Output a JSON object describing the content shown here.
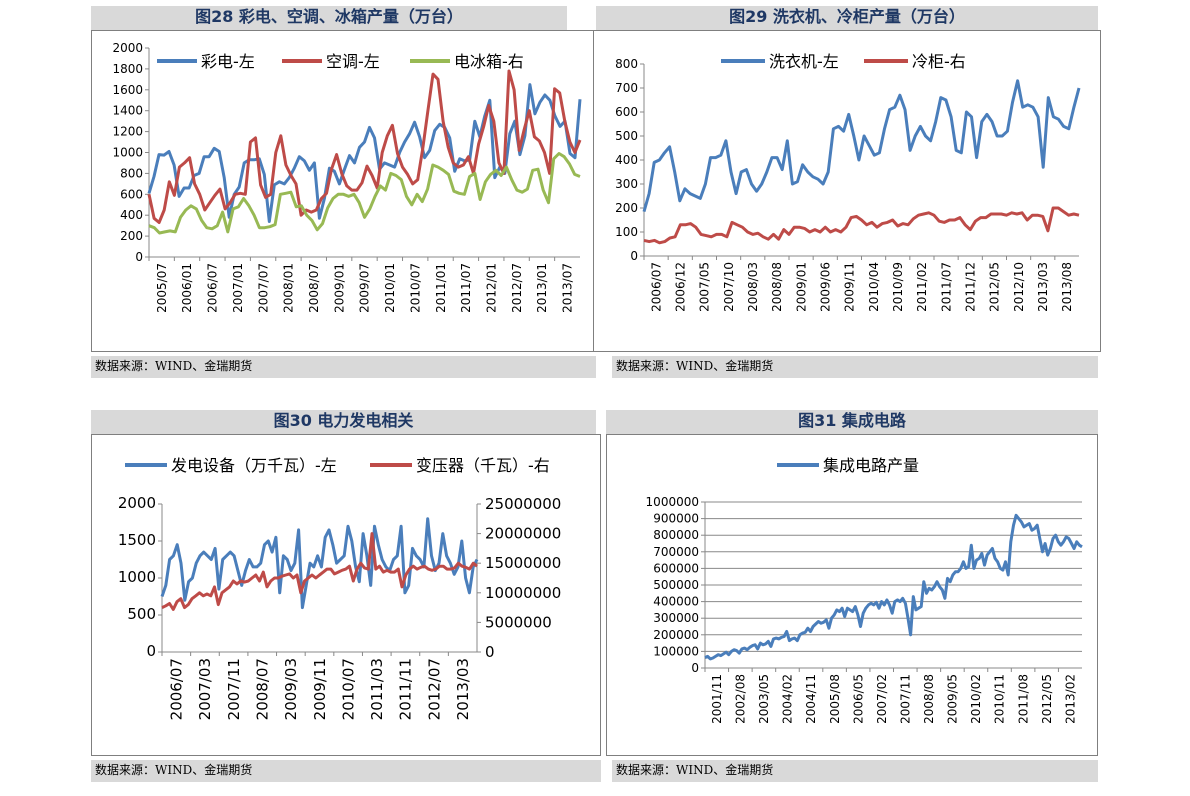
{
  "source_note": "数据来源：WIND、金瑞期货",
  "colors": {
    "blue": "#4a7ebb",
    "red": "#be4b48",
    "green": "#98b954",
    "title": "#1f3864",
    "band": "#d9d9d9"
  },
  "chart_data": [
    {
      "id": "fig28",
      "type": "line",
      "title": "图28  彩电、空调、冰箱产量（万台）",
      "x_ticks": [
        "2005/07",
        "2006/01",
        "2006/07",
        "2007/01",
        "2007/07",
        "2008/01",
        "2008/07",
        "2009/01",
        "2009/07",
        "2010/01",
        "2010/07",
        "2011/01",
        "2011/07",
        "2012/01",
        "2012/07",
        "2013/01",
        "2013/07"
      ],
      "x_range": [
        0,
        97
      ],
      "ylim": [
        0,
        2000
      ],
      "y_ticks": [
        0,
        200,
        400,
        600,
        800,
        1000,
        1200,
        1400,
        1600,
        1800,
        2000
      ],
      "legend_position": "top",
      "series": [
        {
          "name": "彩电-左",
          "color": "#4a7ebb",
          "values": [
            610,
            770,
            980,
            975,
            1010,
            880,
            580,
            660,
            660,
            780,
            800,
            960,
            960,
            1040,
            1010,
            760,
            380,
            600,
            670,
            900,
            930,
            930,
            940,
            790,
            340,
            690,
            720,
            700,
            760,
            850,
            960,
            920,
            830,
            900,
            370,
            560,
            850,
            820,
            700,
            840,
            970,
            900,
            1050,
            1100,
            1240,
            1140,
            840,
            900,
            880,
            860,
            1000,
            1100,
            1180,
            1290,
            1150,
            950,
            1020,
            1210,
            1270,
            1240,
            1140,
            820,
            940,
            920,
            930,
            1300,
            1150,
            1350,
            1500,
            760,
            860,
            800,
            1180,
            1300,
            980,
            1160,
            1650,
            1370,
            1480,
            1550,
            1500,
            1350,
            1250,
            1300,
            990,
            950,
            1510
          ]
        },
        {
          "name": "空调-左",
          "color": "#be4b48",
          "values": [
            600,
            370,
            330,
            450,
            720,
            590,
            860,
            900,
            950,
            700,
            600,
            450,
            520,
            590,
            650,
            460,
            520,
            600,
            610,
            600,
            1100,
            1140,
            690,
            570,
            600,
            1000,
            1160,
            880,
            780,
            700,
            400,
            450,
            430,
            450,
            560,
            610,
            840,
            980,
            800,
            680,
            640,
            640,
            710,
            870,
            780,
            660,
            1000,
            1160,
            1260,
            990,
            860,
            790,
            700,
            740,
            1040,
            1400,
            1750,
            1700,
            1300,
            1050,
            900,
            860,
            880,
            960,
            800,
            1080,
            1250,
            1450,
            1300,
            900,
            800,
            1780,
            1600,
            1020,
            1220,
            1400,
            1150,
            1110,
            1000,
            800,
            1610,
            1570,
            1300,
            1100,
            1000,
            1120
          ]
        },
        {
          "name": "电冰箱-右",
          "color": "#98b954",
          "values": [
            300,
            280,
            230,
            240,
            250,
            240,
            380,
            450,
            490,
            460,
            350,
            280,
            270,
            300,
            430,
            240,
            460,
            480,
            560,
            490,
            400,
            280,
            280,
            290,
            310,
            600,
            610,
            620,
            480,
            490,
            400,
            350,
            260,
            320,
            470,
            560,
            600,
            600,
            580,
            600,
            520,
            380,
            460,
            580,
            680,
            640,
            800,
            780,
            740,
            580,
            500,
            600,
            530,
            650,
            880,
            860,
            830,
            790,
            630,
            610,
            600,
            770,
            800,
            550,
            720,
            790,
            830,
            780,
            860,
            740,
            640,
            620,
            650,
            830,
            840,
            640,
            520,
            940,
            990,
            960,
            890,
            790,
            770
          ]
        }
      ]
    },
    {
      "id": "fig29",
      "type": "line",
      "title": "图29  洗衣机、冷柜产量（万台）",
      "x_ticks": [
        "2006/07",
        "2006/12",
        "2007/05",
        "2007/10",
        "2008/03",
        "2008/08",
        "2009/01",
        "2009/06",
        "2009/11",
        "2010/04",
        "2010/09",
        "2011/02",
        "2011/07",
        "2011/12",
        "2012/05",
        "2012/10",
        "2013/03",
        "2013/08"
      ],
      "x_range": [
        0,
        87
      ],
      "ylim": [
        0,
        800
      ],
      "y_ticks": [
        0,
        100,
        200,
        300,
        400,
        500,
        600,
        700,
        800
      ],
      "legend_position": "top",
      "series": [
        {
          "name": "洗衣机-左",
          "color": "#4a7ebb",
          "values": [
            185,
            260,
            390,
            400,
            430,
            455,
            350,
            230,
            280,
            260,
            250,
            240,
            300,
            410,
            410,
            420,
            480,
            350,
            260,
            350,
            360,
            300,
            270,
            300,
            350,
            410,
            410,
            360,
            480,
            300,
            310,
            380,
            350,
            330,
            320,
            300,
            350,
            530,
            540,
            520,
            590,
            500,
            400,
            500,
            460,
            420,
            430,
            530,
            610,
            620,
            670,
            610,
            440,
            500,
            540,
            500,
            480,
            560,
            660,
            650,
            580,
            440,
            430,
            600,
            580,
            410,
            560,
            590,
            560,
            500,
            500,
            520,
            640,
            730,
            620,
            630,
            620,
            580,
            370,
            660,
            580,
            570,
            540,
            530,
            620,
            700
          ]
        },
        {
          "name": "冷柜-右",
          "color": "#be4b48",
          "values": [
            65,
            60,
            65,
            55,
            60,
            75,
            80,
            130,
            130,
            135,
            120,
            90,
            85,
            80,
            90,
            90,
            80,
            140,
            130,
            120,
            100,
            90,
            95,
            80,
            70,
            90,
            70,
            110,
            90,
            120,
            120,
            115,
            100,
            110,
            100,
            120,
            100,
            110,
            100,
            120,
            160,
            165,
            150,
            130,
            140,
            120,
            135,
            140,
            150,
            125,
            135,
            130,
            155,
            170,
            175,
            180,
            170,
            145,
            140,
            150,
            150,
            160,
            130,
            110,
            145,
            160,
            160,
            175,
            175,
            175,
            170,
            180,
            175,
            180,
            150,
            170,
            170,
            165,
            105,
            200,
            200,
            185,
            170,
            175,
            170
          ]
        }
      ]
    },
    {
      "id": "fig30",
      "type": "line",
      "title": "图30  电力发电相关",
      "x_ticks": [
        "2006/07",
        "2007/03",
        "2007/11",
        "2008/07",
        "2009/03",
        "2009/11",
        "2010/07",
        "2011/03",
        "2011/11",
        "2012/07",
        "2013/03"
      ],
      "x_range": [
        0,
        84
      ],
      "ylim_left": [
        0,
        2000
      ],
      "y_ticks_left": [
        0,
        500,
        1000,
        1500,
        2000
      ],
      "ylim_right": [
        0,
        25000000
      ],
      "y_ticks_right": [
        0,
        5000000,
        10000000,
        15000000,
        20000000,
        25000000
      ],
      "legend_position": "top",
      "series": [
        {
          "name": "发电设备（万千瓦）-左",
          "axis": "left",
          "color": "#4a7ebb",
          "values": [
            750,
            900,
            1250,
            1300,
            1450,
            1200,
            700,
            950,
            1000,
            1200,
            1300,
            1350,
            1300,
            1250,
            1400,
            850,
            1250,
            1300,
            1350,
            1300,
            1100,
            900,
            1100,
            1250,
            1150,
            1150,
            1200,
            1450,
            1500,
            1350,
            1550,
            800,
            1300,
            1250,
            1100,
            1200,
            1650,
            600,
            900,
            1200,
            1150,
            1300,
            1150,
            1550,
            1650,
            1450,
            1200,
            1250,
            1300,
            1700,
            1500,
            1150,
            950,
            1600,
            1300,
            900,
            1700,
            1450,
            1250,
            1150,
            1100,
            1250,
            1300,
            1700,
            800,
            900,
            1400,
            1300,
            1250,
            1150,
            1800,
            1300,
            1100,
            1200,
            1600,
            1300,
            1200,
            1050,
            1150,
            1500,
            1000,
            800,
            1150,
            1250
          ]
        },
        {
          "name": "变压器（千瓦）-右",
          "axis": "right",
          "color": "#be4b48",
          "values": [
            7500,
            7800,
            8200,
            7200,
            8500,
            9000,
            7500,
            8000,
            9000,
            9500,
            10000,
            9500,
            9800,
            9500,
            11000,
            8000,
            10000,
            10500,
            11000,
            12000,
            11500,
            12000,
            11800,
            12000,
            12500,
            13000,
            12000,
            13500,
            11000,
            12000,
            12500,
            12500,
            12800,
            13000,
            13200,
            12500,
            13000,
            10000,
            12000,
            12500,
            13000,
            12500,
            13000,
            13500,
            14000,
            14000,
            13200,
            13500,
            13800,
            14000,
            14500,
            12000,
            14000,
            15000,
            14200,
            14000,
            20000,
            14000,
            14500,
            13500,
            13800,
            13500,
            13500,
            14000,
            11000,
            13000,
            14000,
            14500,
            14000,
            14300,
            14500,
            14000,
            13800,
            14000,
            14500,
            14500,
            14000,
            14000,
            14200,
            15000,
            14500,
            14300,
            14000,
            15000,
            14500
          ]
        }
      ]
    },
    {
      "id": "fig31",
      "type": "line",
      "title": "图31  集成电路",
      "x_ticks": [
        "2001/11",
        "2002/08",
        "2003/05",
        "2004/02",
        "2004/11",
        "2005/08",
        "2006/05",
        "2007/02",
        "2007/11",
        "2008/08",
        "2009/05",
        "2010/02",
        "2010/11",
        "2011/08",
        "2012/05",
        "2013/02"
      ],
      "x_range": [
        0,
        143
      ],
      "ylim": [
        0,
        1000000
      ],
      "y_ticks": [
        0,
        100000,
        200000,
        300000,
        400000,
        500000,
        600000,
        700000,
        800000,
        900000,
        1000000
      ],
      "legend_position": "top",
      "series": [
        {
          "name": "集成电路产量",
          "color": "#4a7ebb",
          "values": [
            62000,
            70000,
            55000,
            60000,
            70000,
            80000,
            75000,
            85000,
            95000,
            80000,
            100000,
            110000,
            105000,
            90000,
            115000,
            120000,
            110000,
            125000,
            135000,
            140000,
            115000,
            150000,
            140000,
            145000,
            160000,
            130000,
            175000,
            180000,
            175000,
            185000,
            190000,
            220000,
            165000,
            175000,
            180000,
            165000,
            200000,
            210000,
            215000,
            240000,
            220000,
            250000,
            265000,
            280000,
            270000,
            275000,
            290000,
            240000,
            300000,
            320000,
            350000,
            340000,
            360000,
            310000,
            360000,
            350000,
            340000,
            370000,
            320000,
            250000,
            330000,
            360000,
            380000,
            390000,
            380000,
            395000,
            360000,
            400000,
            380000,
            410000,
            380000,
            330000,
            400000,
            410000,
            400000,
            420000,
            390000,
            300000,
            200000,
            430000,
            350000,
            360000,
            370000,
            520000,
            450000,
            480000,
            470000,
            490000,
            520000,
            490000,
            470000,
            420000,
            540000,
            520000,
            560000,
            580000,
            580000,
            600000,
            640000,
            600000,
            610000,
            740000,
            600000,
            650000,
            660000,
            690000,
            620000,
            680000,
            700000,
            720000,
            660000,
            640000,
            600000,
            590000,
            640000,
            560000,
            760000,
            860000,
            920000,
            900000,
            880000,
            850000,
            860000,
            870000,
            830000,
            840000,
            860000,
            780000,
            700000,
            750000,
            680000,
            720000,
            780000,
            800000,
            760000,
            740000,
            760000,
            790000,
            780000,
            750000,
            720000,
            760000,
            740000,
            730000
          ]
        }
      ]
    }
  ]
}
